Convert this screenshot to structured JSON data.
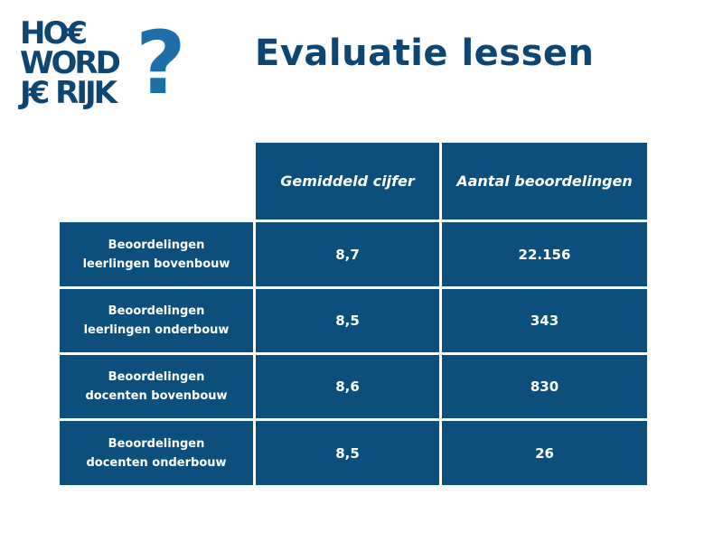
{
  "logo": {
    "line1": "HO€",
    "line2": "WORD",
    "line3": "J€ RIJK",
    "mark": "?"
  },
  "title": "Evaluatie lessen",
  "table": {
    "headers": [
      "Gemiddeld cijfer",
      "Aantal beoordelingen"
    ],
    "rows": [
      {
        "label": "Beoordelingen\nleerlingen bovenbouw",
        "gemiddeld": "8,7",
        "aantal": "22.156"
      },
      {
        "label": "Beoordelingen\nleerlingen onderbouw",
        "gemiddeld": "8,5",
        "aantal": "343"
      },
      {
        "label": "Beoordelingen\ndocenten  bovenbouw",
        "gemiddeld": "8,6",
        "aantal": "830"
      },
      {
        "label": "Beoordelingen\ndocenten onderbouw",
        "gemiddeld": "8,5",
        "aantal": "26"
      }
    ]
  },
  "colors": {
    "cell": "#0d4f7c",
    "title": "#0d4673",
    "logo_accent": "#1e6fa8"
  }
}
